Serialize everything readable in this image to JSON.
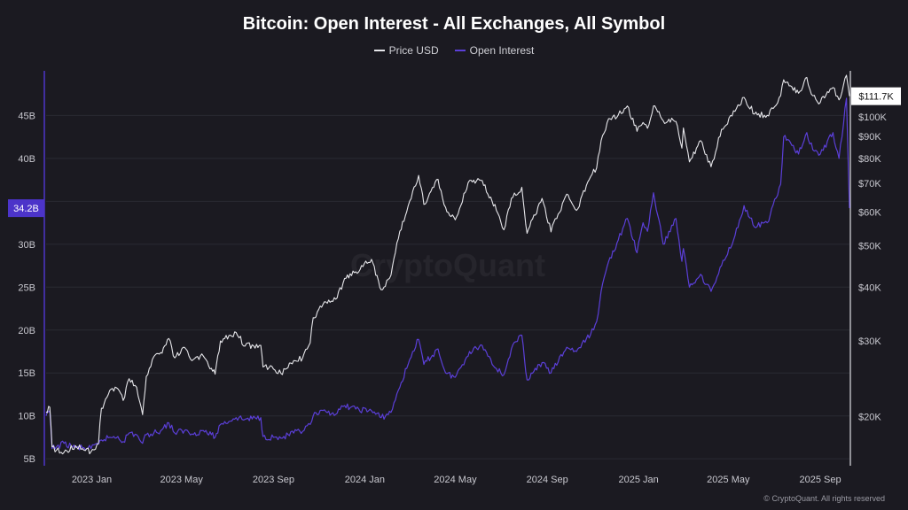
{
  "chart_data": {
    "type": "line",
    "title": "Bitcoin: Open Interest - All Exchanges, All Symbol",
    "watermark": "CryptoQuant",
    "credit": "CryptoQuant. All rights reserved",
    "legend_position": "top",
    "grid": "horizontal",
    "x_ticks": [
      "2023 Jan",
      "2023 May",
      "2023 Sep",
      "2024 Jan",
      "2024 May",
      "2024 Sep",
      "2025 Jan",
      "2025 May",
      "2025 Sep"
    ],
    "x_tick_dates": [
      "2023-01-01",
      "2023-05-01",
      "2023-09-01",
      "2024-01-01",
      "2024-05-01",
      "2024-09-01",
      "2025-01-01",
      "2025-05-01",
      "2025-09-01"
    ],
    "x_range": [
      "2022-11-01",
      "2025-10-10"
    ],
    "y_left": {
      "label": "",
      "ticks": [
        "5B",
        "10B",
        "15B",
        "20B",
        "25B",
        "30B",
        "35B",
        "40B",
        "45B"
      ],
      "tick_values": [
        5,
        10,
        15,
        20,
        25,
        30,
        35,
        40,
        45
      ],
      "range": [
        4.4,
        50.2
      ],
      "current_value_label": "34.2B",
      "current_value": 34.2
    },
    "y_right": {
      "label": "",
      "scale": "log",
      "ticks": [
        "$20K",
        "$30K",
        "$40K",
        "$50K",
        "$60K",
        "$70K",
        "$80K",
        "$90K",
        "$100K"
      ],
      "tick_values": [
        20000,
        30000,
        40000,
        50000,
        60000,
        70000,
        80000,
        90000,
        100000
      ],
      "range": [
        15500,
        128000
      ],
      "current_value_label": "$111.7K",
      "current_value": 111700
    },
    "series": [
      {
        "name": "Price USD",
        "axis": "right",
        "color": "#e6e6ea",
        "points": [
          [
            "2022-11-01",
            20500
          ],
          [
            "2022-11-06",
            21000
          ],
          [
            "2022-11-09",
            17000
          ],
          [
            "2022-11-15",
            16700
          ],
          [
            "2022-11-25",
            16500
          ],
          [
            "2022-12-10",
            17100
          ],
          [
            "2022-12-31",
            16550
          ],
          [
            "2023-01-10",
            17300
          ],
          [
            "2023-01-14",
            20900
          ],
          [
            "2023-01-25",
            23000
          ],
          [
            "2023-02-05",
            23200
          ],
          [
            "2023-02-12",
            21800
          ],
          [
            "2023-02-20",
            24500
          ],
          [
            "2023-03-02",
            23400
          ],
          [
            "2023-03-10",
            20200
          ],
          [
            "2023-03-15",
            24800
          ],
          [
            "2023-03-25",
            27600
          ],
          [
            "2023-04-05",
            28100
          ],
          [
            "2023-04-14",
            30400
          ],
          [
            "2023-04-22",
            27400
          ],
          [
            "2023-05-05",
            29000
          ],
          [
            "2023-05-15",
            27000
          ],
          [
            "2023-05-30",
            27700
          ],
          [
            "2023-06-10",
            25900
          ],
          [
            "2023-06-15",
            25100
          ],
          [
            "2023-06-22",
            30000
          ],
          [
            "2023-07-13",
            31400
          ],
          [
            "2023-07-25",
            29200
          ],
          [
            "2023-08-15",
            29300
          ],
          [
            "2023-08-18",
            26100
          ],
          [
            "2023-09-01",
            25800
          ],
          [
            "2023-09-11",
            25200
          ],
          [
            "2023-09-28",
            27000
          ],
          [
            "2023-10-10",
            27400
          ],
          [
            "2023-10-20",
            29700
          ],
          [
            "2023-10-24",
            34000
          ],
          [
            "2023-11-10",
            37000
          ],
          [
            "2023-11-25",
            37800
          ],
          [
            "2023-12-05",
            42000
          ],
          [
            "2023-12-20",
            43500
          ],
          [
            "2024-01-10",
            46500
          ],
          [
            "2024-01-23",
            39500
          ],
          [
            "2024-02-05",
            42700
          ],
          [
            "2024-02-15",
            52000
          ],
          [
            "2024-02-28",
            62000
          ],
          [
            "2024-03-05",
            67000
          ],
          [
            "2024-03-13",
            73000
          ],
          [
            "2024-03-20",
            62500
          ],
          [
            "2024-04-08",
            71500
          ],
          [
            "2024-04-18",
            61500
          ],
          [
            "2024-05-01",
            57500
          ],
          [
            "2024-05-20",
            71000
          ],
          [
            "2024-06-06",
            71000
          ],
          [
            "2024-06-25",
            60500
          ],
          [
            "2024-07-05",
            54500
          ],
          [
            "2024-07-15",
            64500
          ],
          [
            "2024-07-29",
            68500
          ],
          [
            "2024-08-05",
            53500
          ],
          [
            "2024-08-25",
            64500
          ],
          [
            "2024-09-06",
            53900
          ],
          [
            "2024-09-27",
            66000
          ],
          [
            "2024-10-10",
            60500
          ],
          [
            "2024-10-29",
            72500
          ],
          [
            "2024-11-06",
            76000
          ],
          [
            "2024-11-12",
            88000
          ],
          [
            "2024-11-22",
            99000
          ],
          [
            "2024-12-05",
            101000
          ],
          [
            "2024-12-17",
            106000
          ],
          [
            "2024-12-30",
            92500
          ],
          [
            "2025-01-07",
            97000
          ],
          [
            "2025-01-13",
            94000
          ],
          [
            "2025-01-21",
            106000
          ],
          [
            "2025-02-03",
            98000
          ],
          [
            "2025-02-20",
            97500
          ],
          [
            "2025-02-28",
            84500
          ],
          [
            "2025-03-02",
            94200
          ],
          [
            "2025-03-10",
            78500
          ],
          [
            "2025-03-25",
            88000
          ],
          [
            "2025-04-08",
            76500
          ],
          [
            "2025-04-22",
            93500
          ],
          [
            "2025-05-10",
            103000
          ],
          [
            "2025-05-22",
            111000
          ],
          [
            "2025-06-05",
            101500
          ],
          [
            "2025-06-22",
            100800
          ],
          [
            "2025-07-10",
            112000
          ],
          [
            "2025-07-14",
            122000
          ],
          [
            "2025-07-25",
            117500
          ],
          [
            "2025-08-03",
            113500
          ],
          [
            "2025-08-14",
            123500
          ],
          [
            "2025-08-22",
            112000
          ],
          [
            "2025-09-01",
            108000
          ],
          [
            "2025-09-18",
            117000
          ],
          [
            "2025-09-26",
            109500
          ],
          [
            "2025-10-06",
            125000
          ],
          [
            "2025-10-10",
            111700
          ]
        ]
      },
      {
        "name": "Open Interest",
        "axis": "left",
        "color": "#5b3fd8",
        "points": [
          [
            "2022-11-01",
            10.0
          ],
          [
            "2022-11-06",
            10.6
          ],
          [
            "2022-11-09",
            6.2
          ],
          [
            "2022-11-15",
            6.4
          ],
          [
            "2022-11-25",
            6.8
          ],
          [
            "2022-12-10",
            6.3
          ],
          [
            "2022-12-31",
            6.2
          ],
          [
            "2023-01-10",
            6.7
          ],
          [
            "2023-01-14",
            7.2
          ],
          [
            "2023-01-25",
            7.5
          ],
          [
            "2023-02-05",
            7.6
          ],
          [
            "2023-02-12",
            7.0
          ],
          [
            "2023-02-20",
            8.0
          ],
          [
            "2023-03-02",
            7.8
          ],
          [
            "2023-03-10",
            6.8
          ],
          [
            "2023-03-15",
            7.8
          ],
          [
            "2023-03-25",
            8.0
          ],
          [
            "2023-04-05",
            8.4
          ],
          [
            "2023-04-14",
            9.2
          ],
          [
            "2023-04-22",
            8.0
          ],
          [
            "2023-05-05",
            8.3
          ],
          [
            "2023-05-15",
            7.9
          ],
          [
            "2023-05-30",
            8.3
          ],
          [
            "2023-06-10",
            7.8
          ],
          [
            "2023-06-15",
            7.5
          ],
          [
            "2023-06-22",
            9.0
          ],
          [
            "2023-07-13",
            9.8
          ],
          [
            "2023-07-25",
            9.6
          ],
          [
            "2023-08-15",
            9.8
          ],
          [
            "2023-08-18",
            7.6
          ],
          [
            "2023-09-01",
            7.5
          ],
          [
            "2023-09-11",
            7.4
          ],
          [
            "2023-09-28",
            8.0
          ],
          [
            "2023-10-10",
            8.2
          ],
          [
            "2023-10-20",
            9.0
          ],
          [
            "2023-10-24",
            10.0
          ],
          [
            "2023-11-10",
            10.5
          ],
          [
            "2023-11-25",
            10.3
          ],
          [
            "2023-12-05",
            11.2
          ],
          [
            "2023-12-20",
            10.8
          ],
          [
            "2024-01-10",
            10.6
          ],
          [
            "2024-01-23",
            9.8
          ],
          [
            "2024-02-05",
            10.4
          ],
          [
            "2024-02-15",
            13.0
          ],
          [
            "2024-02-28",
            16.0
          ],
          [
            "2024-03-05",
            17.5
          ],
          [
            "2024-03-13",
            18.9
          ],
          [
            "2024-03-20",
            16.0
          ],
          [
            "2024-04-08",
            17.8
          ],
          [
            "2024-04-18",
            15.0
          ],
          [
            "2024-05-01",
            14.5
          ],
          [
            "2024-05-20",
            17.5
          ],
          [
            "2024-06-06",
            18.2
          ],
          [
            "2024-06-25",
            15.5
          ],
          [
            "2024-07-05",
            14.8
          ],
          [
            "2024-07-15",
            17.8
          ],
          [
            "2024-07-29",
            19.4
          ],
          [
            "2024-08-05",
            14.2
          ],
          [
            "2024-08-25",
            16.2
          ],
          [
            "2024-09-06",
            15.0
          ],
          [
            "2024-09-27",
            18.0
          ],
          [
            "2024-10-10",
            17.5
          ],
          [
            "2024-10-29",
            19.5
          ],
          [
            "2024-11-06",
            21.0
          ],
          [
            "2024-11-12",
            24.5
          ],
          [
            "2024-11-22",
            28.0
          ],
          [
            "2024-12-05",
            30.5
          ],
          [
            "2024-12-17",
            33.0
          ],
          [
            "2024-12-30",
            29.0
          ],
          [
            "2025-01-07",
            32.5
          ],
          [
            "2025-01-13",
            31.5
          ],
          [
            "2025-01-21",
            36.0
          ],
          [
            "2025-02-03",
            30.0
          ],
          [
            "2025-02-20",
            33.0
          ],
          [
            "2025-02-28",
            28.0
          ],
          [
            "2025-03-02",
            29.5
          ],
          [
            "2025-03-10",
            25.0
          ],
          [
            "2025-03-25",
            26.5
          ],
          [
            "2025-04-08",
            24.5
          ],
          [
            "2025-04-22",
            27.5
          ],
          [
            "2025-05-10",
            31.0
          ],
          [
            "2025-05-22",
            34.5
          ],
          [
            "2025-06-05",
            32.0
          ],
          [
            "2025-06-22",
            32.5
          ],
          [
            "2025-07-10",
            37.0
          ],
          [
            "2025-07-14",
            42.5
          ],
          [
            "2025-07-25",
            41.5
          ],
          [
            "2025-08-03",
            40.5
          ],
          [
            "2025-08-14",
            43.0
          ],
          [
            "2025-08-22",
            41.0
          ],
          [
            "2025-09-01",
            40.5
          ],
          [
            "2025-09-18",
            43.0
          ],
          [
            "2025-09-26",
            40.0
          ],
          [
            "2025-10-06",
            47.0
          ],
          [
            "2025-10-10",
            34.2
          ]
        ]
      }
    ]
  },
  "colors": {
    "background": "#1b1a21",
    "grid": "#2b2a33",
    "price": "#e6e6ea",
    "open_interest": "#5b3fd8",
    "oi_axis_badge": "#4c34c9"
  }
}
